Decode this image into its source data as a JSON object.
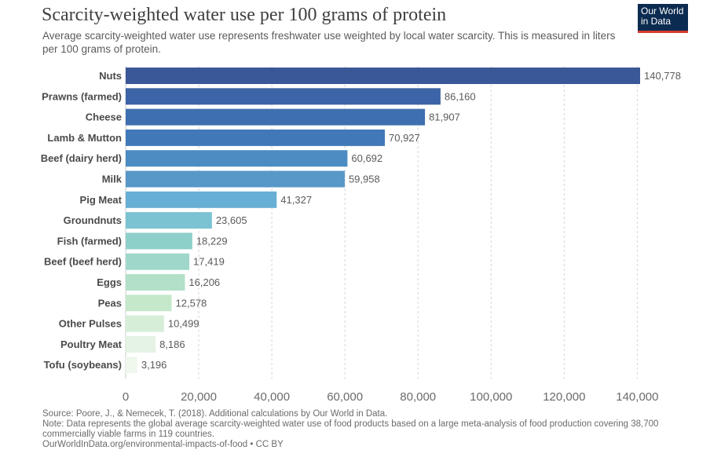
{
  "header": {
    "title": "Scarcity-weighted water use per 100 grams of protein",
    "subtitle": "Average scarcity-weighted water use represents freshwater use weighted by local water scarcity. This is measured in liters per 100 grams of protein.",
    "logo_line1": "Our World",
    "logo_line2": "in Data"
  },
  "footer": {
    "source": "Source: Poore, J., & Nemecek, T. (2018). Additional calculations by Our World in Data.",
    "note": "Note: Data represents the global average scarcity-weighted water use of food products based on a large meta-analysis of food production covering 38,700 commercially viable farms in 119 countries.",
    "url": "OurWorldInData.org/environmental-impacts-of-food • CC BY"
  },
  "chart_data": {
    "type": "bar",
    "orientation": "horizontal",
    "categories": [
      "Nuts",
      "Prawns (farmed)",
      "Cheese",
      "Lamb & Mutton",
      "Beef (dairy herd)",
      "Milk",
      "Pig Meat",
      "Groundnuts",
      "Fish (farmed)",
      "Beef (beef herd)",
      "Eggs",
      "Peas",
      "Other Pulses",
      "Poultry Meat",
      "Tofu (soybeans)"
    ],
    "values": [
      140778,
      86160,
      81907,
      70927,
      60692,
      59958,
      41327,
      23605,
      18229,
      17419,
      16206,
      12578,
      10499,
      8186,
      3196
    ],
    "value_labels": [
      "140,778",
      "86,160",
      "81,907",
      "70,927",
      "60,692",
      "59,958",
      "41,327",
      "23,605",
      "18,229",
      "17,419",
      "16,206",
      "12,578",
      "10,499",
      "8,186",
      "3,196"
    ],
    "xlim": [
      0,
      140778
    ],
    "x_ticks": [
      0,
      20000,
      40000,
      60000,
      80000,
      100000,
      120000,
      140000
    ],
    "x_tick_labels": [
      "0",
      "20,000",
      "40,000",
      "60,000",
      "80,000",
      "100,000",
      "120,000",
      "140,000"
    ],
    "grid": true,
    "colors": [
      "#3a5897",
      "#3c64a6",
      "#3e6fb0",
      "#4179b8",
      "#4d8cc2",
      "#5898c8",
      "#67afd4",
      "#7bc3d2",
      "#8ecfca",
      "#9fd8cb",
      "#b2e0c8",
      "#c5e8cb",
      "#d6eed8",
      "#e4f3e4",
      "#f0f8ee"
    ]
  }
}
